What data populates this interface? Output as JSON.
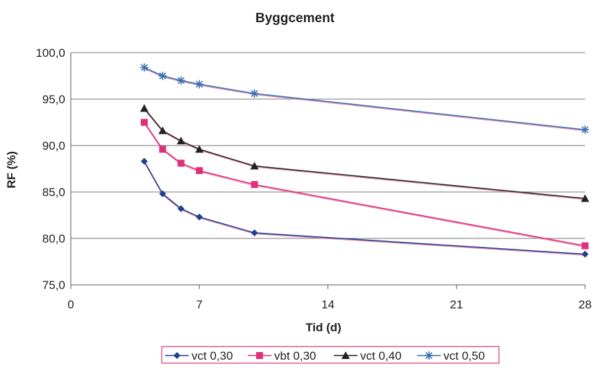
{
  "chart_data": {
    "type": "line",
    "title": "Byggcement",
    "xlabel": "Tid (d)",
    "ylabel": "RF (%)",
    "xlim": [
      0,
      28
    ],
    "ylim": [
      75,
      100
    ],
    "x_ticks": [
      "0",
      "7",
      "14",
      "21",
      "28"
    ],
    "y_ticks": [
      "75,0",
      "80,0",
      "85,0",
      "90,0",
      "95,0",
      "100,0"
    ],
    "grid": "horizontal",
    "legend_position": "bottom",
    "series": [
      {
        "name": "vct 0,30",
        "color": "#1f3f8f",
        "marker": "diamond",
        "x": [
          4,
          5,
          6,
          7,
          10,
          28
        ],
        "y": [
          88.3,
          84.8,
          83.2,
          82.3,
          80.6,
          78.3
        ]
      },
      {
        "name": "vbt 0,30",
        "color": "#e0307a",
        "marker": "square",
        "x": [
          4,
          5,
          6,
          7,
          10,
          28
        ],
        "y": [
          92.5,
          89.6,
          88.1,
          87.3,
          85.8,
          79.2
        ]
      },
      {
        "name": "vct 0,40",
        "color": "#222222",
        "marker": "triangle",
        "x": [
          4,
          5,
          6,
          7,
          10,
          28
        ],
        "y": [
          94.0,
          91.6,
          90.5,
          89.6,
          87.8,
          84.3
        ]
      },
      {
        "name": "vct 0,50",
        "color": "#3a6fb0",
        "marker": "star",
        "x": [
          4,
          5,
          6,
          7,
          10,
          28
        ],
        "y": [
          98.4,
          97.5,
          97.0,
          96.6,
          95.6,
          91.7
        ]
      }
    ]
  }
}
